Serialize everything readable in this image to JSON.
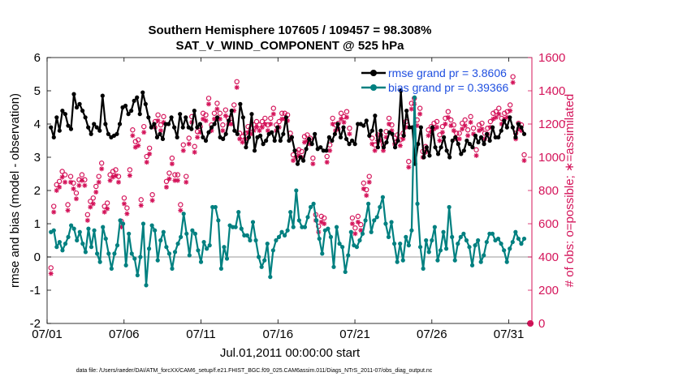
{
  "chart_data": {
    "type": "line",
    "title": "Southern Hemisphere 107605 / 109457 = 98.308%",
    "subtitle": "SAT_V_WIND_COMPONENT @ 525 hPa",
    "xlabel": "Jul.01,2011 00:00:00 start",
    "ylabel": "rmse and bias (model - observation)",
    "ylabel_right": "# of obs: o=possible; ∗=assimilated",
    "footnote": "data file: /Users/raeder/DAI/ATM_forcXX/CAM6_setup/f.e21.FHIST_BGC.f09_025.CAM6assim.011/Diags_NTrS_2011-07/obs_diag_output.nc",
    "xlim": [
      0,
      31.5
    ],
    "ylim": [
      -2,
      6
    ],
    "ylim_right": [
      0,
      1600
    ],
    "xticks": [
      0,
      5,
      10,
      15,
      20,
      25,
      30
    ],
    "xtick_labels": [
      "07/01",
      "07/06",
      "07/11",
      "07/16",
      "07/21",
      "07/26",
      "07/31"
    ],
    "yticks": [
      -2,
      -1,
      0,
      1,
      2,
      3,
      4,
      5,
      6
    ],
    "ytick_labels": [
      "-2",
      "-1",
      "0",
      "1",
      "2",
      "3",
      "4",
      "5",
      "6"
    ],
    "yticks_right": [
      0,
      200,
      400,
      600,
      800,
      1000,
      1200,
      1400,
      1600
    ],
    "ytick_labels_right": [
      "0",
      "200",
      "400",
      "600",
      "800",
      "1000",
      "1200",
      "1400",
      "1600"
    ],
    "colors": {
      "rmse": "#000000",
      "bias": "#008080",
      "obs": "#d4145a",
      "zero": "#bbbbbb",
      "legend_text": "#1f4fe0"
    },
    "series": [
      {
        "name": "rmse grand pr = 3.8606",
        "axis": "left",
        "values": [
          3.9,
          3.6,
          4.2,
          3.8,
          4.4,
          4.3,
          3.95,
          3.85,
          4.9,
          4.5,
          4.6,
          4.4,
          4.2,
          3.9,
          3.7,
          4.0,
          3.9,
          3.8,
          4.85,
          4.0,
          3.7,
          3.6,
          3.65,
          3.7,
          4.0,
          4.5,
          4.55,
          4.3,
          4.4,
          4.7,
          4.8,
          4.3,
          4.95,
          4.6,
          4.2,
          3.9,
          4.0,
          3.6,
          3.7,
          3.55,
          4.0,
          4.0,
          4.2,
          3.9,
          3.6,
          4.3,
          3.9,
          4.2,
          3.9,
          3.85,
          4.4,
          3.9,
          4.0,
          3.6,
          3.5,
          3.75,
          3.9,
          4.0,
          4.2,
          3.6,
          3.55,
          3.7,
          4.1,
          4.4,
          3.8,
          3.7,
          4.6,
          4.2,
          3.3,
          3.6,
          4.3,
          3.2,
          3.6,
          3.65,
          3.4,
          3.5,
          3.7,
          3.75,
          3.5,
          3.9,
          3.5,
          3.7,
          4.2,
          3.5,
          3.6,
          3.2,
          2.8,
          3.0,
          2.9,
          3.25,
          3.55,
          3.4,
          3.7,
          3.25,
          3.3,
          3.2,
          3.2,
          3.6,
          3.5,
          3.7,
          4.0,
          3.6,
          3.9,
          3.55,
          3.4,
          3.5,
          3.4,
          4.0,
          4.0,
          3.95,
          4.1,
          3.65,
          3.8,
          4.25,
          3.3,
          3.8,
          3.3,
          3.45,
          3.75,
          3.7,
          3.3,
          3.5,
          5.0,
          3.65,
          4.4,
          3.9,
          3.9,
          2.8,
          3.4,
          3.9,
          3.0,
          3.3,
          3.05,
          3.9,
          3.3,
          3.1,
          3.3,
          3.6,
          3.2,
          3.0,
          3.5,
          3.6,
          3.4,
          3.1,
          3.2,
          3.5,
          3.4,
          3.3,
          3.65,
          3.45,
          3.6,
          3.4,
          3.7,
          3.5,
          3.9,
          3.6,
          3.6,
          3.8,
          4.1,
          3.9,
          4.2,
          3.9,
          3.6,
          4.0,
          3.9,
          3.7
        ],
        "markers": {
          "day": 24.8,
          "value": 5.0
        }
      },
      {
        "name": "bias grand pr = 0.39366",
        "axis": "left",
        "values": [
          0.75,
          0.8,
          0.3,
          0.45,
          0.2,
          0.4,
          0.6,
          0.95,
          0.85,
          0.5,
          0.75,
          0.4,
          0.15,
          0.85,
          0.3,
          0.8,
          0.1,
          -0.15,
          0.9,
          0.55,
          0.1,
          -0.35,
          0.1,
          0.35,
          1.1,
          1.0,
          -0.25,
          0.7,
          0.1,
          -0.05,
          -0.55,
          0.0,
          1.0,
          -0.85,
          0.25,
          0.95,
          0.8,
          -0.1,
          0.5,
          0.75,
          0.3,
          0.1,
          -0.35,
          0.15,
          0.4,
          0.6,
          1.3,
          0.7,
          0.05,
          0.8,
          0.7,
          0.2,
          -0.15,
          0.45,
          0.25,
          0.35,
          1.5,
          1.5,
          1.1,
          -0.35,
          0.3,
          -0.05,
          0.95,
          0.9,
          0.9,
          1.35,
          0.85,
          0.65,
          0.65,
          0.5,
          1.05,
          0.5,
          0.0,
          -0.3,
          -0.1,
          0.4,
          -0.6,
          0.2,
          0.5,
          0.6,
          0.75,
          0.65,
          0.8,
          1.35,
          0.9,
          2.0,
          1.1,
          0.9,
          0.9,
          1.2,
          1.5,
          1.6,
          1.1,
          0.55,
          0.1,
          0.8,
          0.85,
          0.6,
          -0.3,
          0.9,
          0.4,
          0.3,
          -0.45,
          0.05,
          0.75,
          0.35,
          0.3,
          0.5,
          0.7,
          1.1,
          1.6,
          0.75,
          1.1,
          1.2,
          1.5,
          1.8,
          1.0,
          0.6,
          1.05,
          0.4,
          -0.15,
          0.4,
          -0.1,
          0.6,
          0.35,
          0.8,
          4.8,
          1.6,
          0.3,
          -0.35,
          0.5,
          0.15,
          0.5,
          0.9,
          -0.1,
          0.2,
          0.75,
          0.25,
          1.5,
          0.6,
          -0.1,
          0.4,
          0.6,
          0.7,
          0.5,
          0.3,
          -0.25,
          0.35,
          0.5,
          -0.15,
          0.05,
          0.45,
          0.7,
          0.7,
          0.5,
          0.55,
          0.4,
          0.2,
          -0.15,
          0.25,
          0.45,
          0.75,
          0.55,
          0.4,
          0.55
        ],
        "markers": {
          "day": 24.8,
          "value": 4.8
        }
      },
      {
        "name": "# of obs possible (o)",
        "axis": "right",
        "values": [
          320,
          690,
          820,
          840,
          900,
          880,
          700,
          870,
          830,
          770,
          850,
          880,
          850,
          640,
          720,
          740,
          810,
          870,
          950,
          690,
          710,
          880,
          900,
          910,
          870,
          600,
          740,
          680,
          910,
          1150,
          1080,
          1090,
          730,
          1170,
          990,
          1040,
          760,
          1200,
          1240,
          1180,
          1230,
          840,
          890,
          980,
          880,
          880,
          700,
          1060,
          870,
          1100,
          1230,
          1050,
          1140,
          1170,
          1250,
          1240,
          1340,
          1180,
          1250,
          1310,
          1250,
          1180,
          1270,
          1220,
          1220,
          1300,
          1440,
          1130,
          1110,
          1130,
          1170,
          1160,
          1180,
          1200,
          1180,
          1200,
          1220,
          1180,
          1220,
          1280,
          1180,
          1200,
          1250,
          1250,
          1240,
          1130,
          1000,
          1020,
          1030,
          1020,
          1110,
          1120,
          1100,
          980,
          640,
          570,
          630,
          620,
          990,
          1060,
          1220,
          1180,
          1190,
          1250,
          1230,
          1260,
          1160,
          620,
          560,
          630,
          580,
          830,
          790,
          870,
          1100,
          1060,
          1120,
          1120,
          1060,
          1140,
          1220,
          1180,
          1100,
          1120,
          1090,
          1130,
          1200,
          960,
          1310,
          1340,
          1210,
          1280,
          1020,
          1050,
          1150,
          1170,
          1190,
          1200,
          1120,
          1170,
          1220,
          1260,
          1210,
          1180,
          1130,
          1130,
          1190,
          1210,
          1150,
          1230,
          1160,
          1030,
          1180,
          1190,
          1130,
          1160,
          1200,
          1250,
          1260,
          1280,
          1220,
          1250,
          1260,
          1300,
          1470,
          1130,
          1190,
          1180,
          1000
        ],
        "markers": {
          "day": 31.4,
          "value": 0
        }
      },
      {
        "name": "# of obs assimilated (*)",
        "axis": "right",
        "values": [
          310,
          680,
          810,
          830,
          890,
          860,
          690,
          860,
          820,
          760,
          840,
          870,
          840,
          630,
          710,
          730,
          800,
          860,
          940,
          680,
          700,
          870,
          890,
          900,
          860,
          590,
          730,
          670,
          900,
          1140,
          1070,
          1080,
          720,
          1160,
          980,
          1030,
          750,
          1190,
          1230,
          1170,
          1220,
          830,
          880,
          970,
          870,
          870,
          690,
          1050,
          860,
          1090,
          1220,
          1040,
          1130,
          1160,
          1240,
          1230,
          1330,
          1170,
          1240,
          1300,
          1240,
          1170,
          1260,
          1210,
          1210,
          1290,
          1430,
          1120,
          1100,
          1120,
          1160,
          1150,
          1170,
          1190,
          1170,
          1190,
          1210,
          1170,
          1210,
          1270,
          1170,
          1190,
          1240,
          1240,
          1230,
          1120,
          990,
          1010,
          1020,
          1010,
          1100,
          1110,
          1090,
          970,
          630,
          560,
          620,
          610,
          980,
          1050,
          1210,
          1170,
          1180,
          1240,
          1220,
          1250,
          1150,
          610,
          550,
          620,
          570,
          820,
          780,
          860,
          1090,
          1050,
          1110,
          1110,
          1050,
          1130,
          1210,
          1170,
          1090,
          1110,
          1080,
          1120,
          1190,
          950,
          1300,
          1330,
          1200,
          1270,
          1010,
          1040,
          1140,
          1160,
          1180,
          1190,
          1110,
          1160,
          1210,
          1250,
          1200,
          1170,
          1120,
          1120,
          1180,
          1200,
          1140,
          1220,
          1150,
          1020,
          1170,
          1180,
          1120,
          1150,
          1190,
          1240,
          1250,
          1270,
          1210,
          1240,
          1250,
          1290,
          1460,
          1120,
          1180,
          1170,
          990
        ]
      }
    ],
    "legend": [
      {
        "label": "rmse grand pr = 3.8606",
        "color": "#000000"
      },
      {
        "label": "bias grand pr = 0.39366",
        "color": "#008080"
      }
    ],
    "legend_position": "top-right",
    "grid": true
  }
}
